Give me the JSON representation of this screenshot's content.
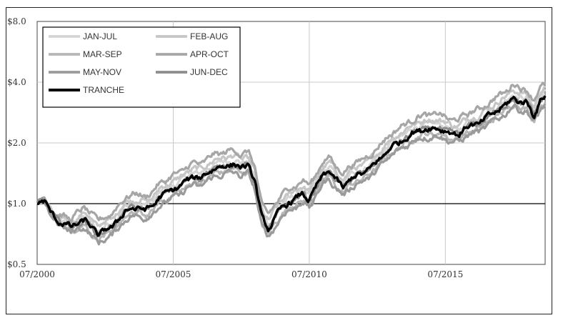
{
  "chart_data": {
    "type": "line",
    "y_scale": "log",
    "ylim": [
      0.5,
      8.0
    ],
    "x_range": [
      "07/2000",
      "03/2019"
    ],
    "y_ticks": [
      {
        "value": 0.5,
        "label": "$0.5"
      },
      {
        "value": 1.0,
        "label": "$1.0"
      },
      {
        "value": 2.0,
        "label": "$2.0"
      },
      {
        "value": 4.0,
        "label": "$4.0"
      },
      {
        "value": 8.0,
        "label": "$8.0"
      }
    ],
    "x_ticks": [
      {
        "value": "07/2000",
        "label": "07/2000"
      },
      {
        "value": "07/2005",
        "label": "07/2005"
      },
      {
        "value": "07/2010",
        "label": "07/2010"
      },
      {
        "value": "07/2015",
        "label": "07/2015"
      }
    ],
    "grid": true,
    "reference_line": 1.0,
    "legend_position": "top-left",
    "x": [
      "07/2000",
      "10/2000",
      "01/2001",
      "04/2001",
      "07/2001",
      "10/2001",
      "01/2002",
      "04/2002",
      "07/2002",
      "10/2002",
      "01/2003",
      "04/2003",
      "07/2003",
      "10/2003",
      "01/2004",
      "04/2004",
      "07/2004",
      "10/2004",
      "01/2005",
      "04/2005",
      "07/2005",
      "10/2005",
      "01/2006",
      "04/2006",
      "07/2006",
      "10/2006",
      "01/2007",
      "04/2007",
      "07/2007",
      "10/2007",
      "01/2008",
      "04/2008",
      "07/2008",
      "10/2008",
      "01/2009",
      "04/2009",
      "07/2009",
      "10/2009",
      "01/2010",
      "04/2010",
      "07/2010",
      "10/2010",
      "01/2011",
      "04/2011",
      "07/2011",
      "10/2011",
      "01/2012",
      "04/2012",
      "07/2012",
      "10/2012",
      "01/2013",
      "04/2013",
      "07/2013",
      "10/2013",
      "01/2014",
      "04/2014",
      "07/2014",
      "10/2014",
      "01/2015",
      "04/2015",
      "07/2015",
      "10/2015",
      "01/2016",
      "04/2016",
      "07/2016",
      "10/2016",
      "01/2017",
      "04/2017",
      "07/2017",
      "10/2017",
      "01/2018",
      "04/2018",
      "07/2018",
      "10/2018",
      "01/2019",
      "03/2019"
    ],
    "tranche_values": [
      1.0,
      1.05,
      0.9,
      0.82,
      0.8,
      0.76,
      0.8,
      0.83,
      0.76,
      0.7,
      0.74,
      0.76,
      0.84,
      0.92,
      0.95,
      0.95,
      0.93,
      0.98,
      1.08,
      1.12,
      1.18,
      1.22,
      1.3,
      1.36,
      1.34,
      1.42,
      1.5,
      1.52,
      1.55,
      1.58,
      1.5,
      1.55,
      1.3,
      0.85,
      0.75,
      0.85,
      0.95,
      1.02,
      1.05,
      1.12,
      1.05,
      1.2,
      1.38,
      1.45,
      1.3,
      1.2,
      1.32,
      1.38,
      1.42,
      1.5,
      1.62,
      1.75,
      1.9,
      2.0,
      2.1,
      2.22,
      2.3,
      2.35,
      2.35,
      2.38,
      2.3,
      2.22,
      2.22,
      2.38,
      2.45,
      2.5,
      2.65,
      2.8,
      2.95,
      3.1,
      3.35,
      3.2,
      3.15,
      2.75,
      3.25,
      3.4
    ],
    "series": [
      {
        "name": "JAN-JUL",
        "color": "#d4d4d4",
        "width": 3.2,
        "factor": 1.05,
        "phase": 0.0
      },
      {
        "name": "FEB-AUG",
        "color": "#c6c6c6",
        "width": 3.2,
        "factor": 1.1,
        "phase": 1.1
      },
      {
        "name": "MAR-SEP",
        "color": "#b6b6b6",
        "width": 3.2,
        "factor": 0.94,
        "phase": 2.2
      },
      {
        "name": "APR-OCT",
        "color": "#a6a6a6",
        "width": 3.2,
        "factor": 1.17,
        "phase": 3.3
      },
      {
        "name": "MAY-NOV",
        "color": "#9a9a9a",
        "width": 3.2,
        "factor": 0.91,
        "phase": 4.4
      },
      {
        "name": "JUN-DEC",
        "color": "#8c8c8c",
        "width": 3.2,
        "factor": 1.0,
        "phase": 5.5
      },
      {
        "name": "TRANCHE",
        "color": "#000000",
        "width": 3.4,
        "factor": 1.0,
        "phase": 0.0
      }
    ]
  }
}
